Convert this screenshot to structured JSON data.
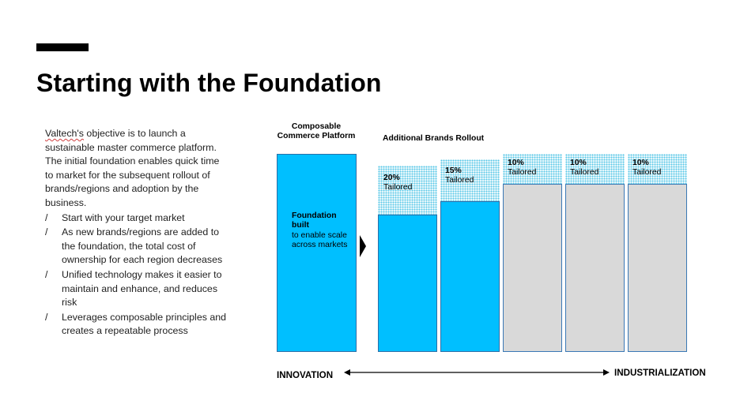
{
  "slide": {
    "title": "Starting with the Foundation"
  },
  "body": {
    "intro_first_word": "Valtech's",
    "intro_rest": " objective is to launch a sustainable master commerce platform. The initial foundation enables quick time to market for the subsequent rollout of brands/regions and adoption by the business.",
    "bullet_marker": "/",
    "bullets": [
      "Start with your target market",
      "As new brands/regions are added to the foundation, the total cost of ownership for each region decreases",
      "Unified technology makes it easier to maintain and enhance, and reduces risk",
      "Leverages composable principles and creates a repeatable process"
    ]
  },
  "diagram": {
    "foundation": {
      "title": "Composable Commerce Platform",
      "label_bold": "Foundation built",
      "label_rest": "to enable scale across markets"
    },
    "rollout": {
      "title": "Additional Brands Rollout",
      "columns": [
        {
          "pct": "20%",
          "label": "Tailored",
          "tailored_share": 0.2,
          "color": "blue"
        },
        {
          "pct": "15%",
          "label": "Tailored",
          "tailored_share": 0.15,
          "color": "blue"
        },
        {
          "pct": "10%",
          "label": "Tailored",
          "tailored_share": 0.1,
          "color": "grey"
        },
        {
          "pct": "10%",
          "label": "Tailored",
          "tailored_share": 0.1,
          "color": "grey"
        },
        {
          "pct": "10%",
          "label": "Tailored",
          "tailored_share": 0.1,
          "color": "grey"
        }
      ]
    },
    "axis": {
      "left": "INNOVATION",
      "right": "INDUSTRIALIZATION"
    },
    "colors": {
      "blue": "#00BFFF",
      "grey": "#D9D9D9",
      "dots": "#5CC9E8"
    }
  }
}
